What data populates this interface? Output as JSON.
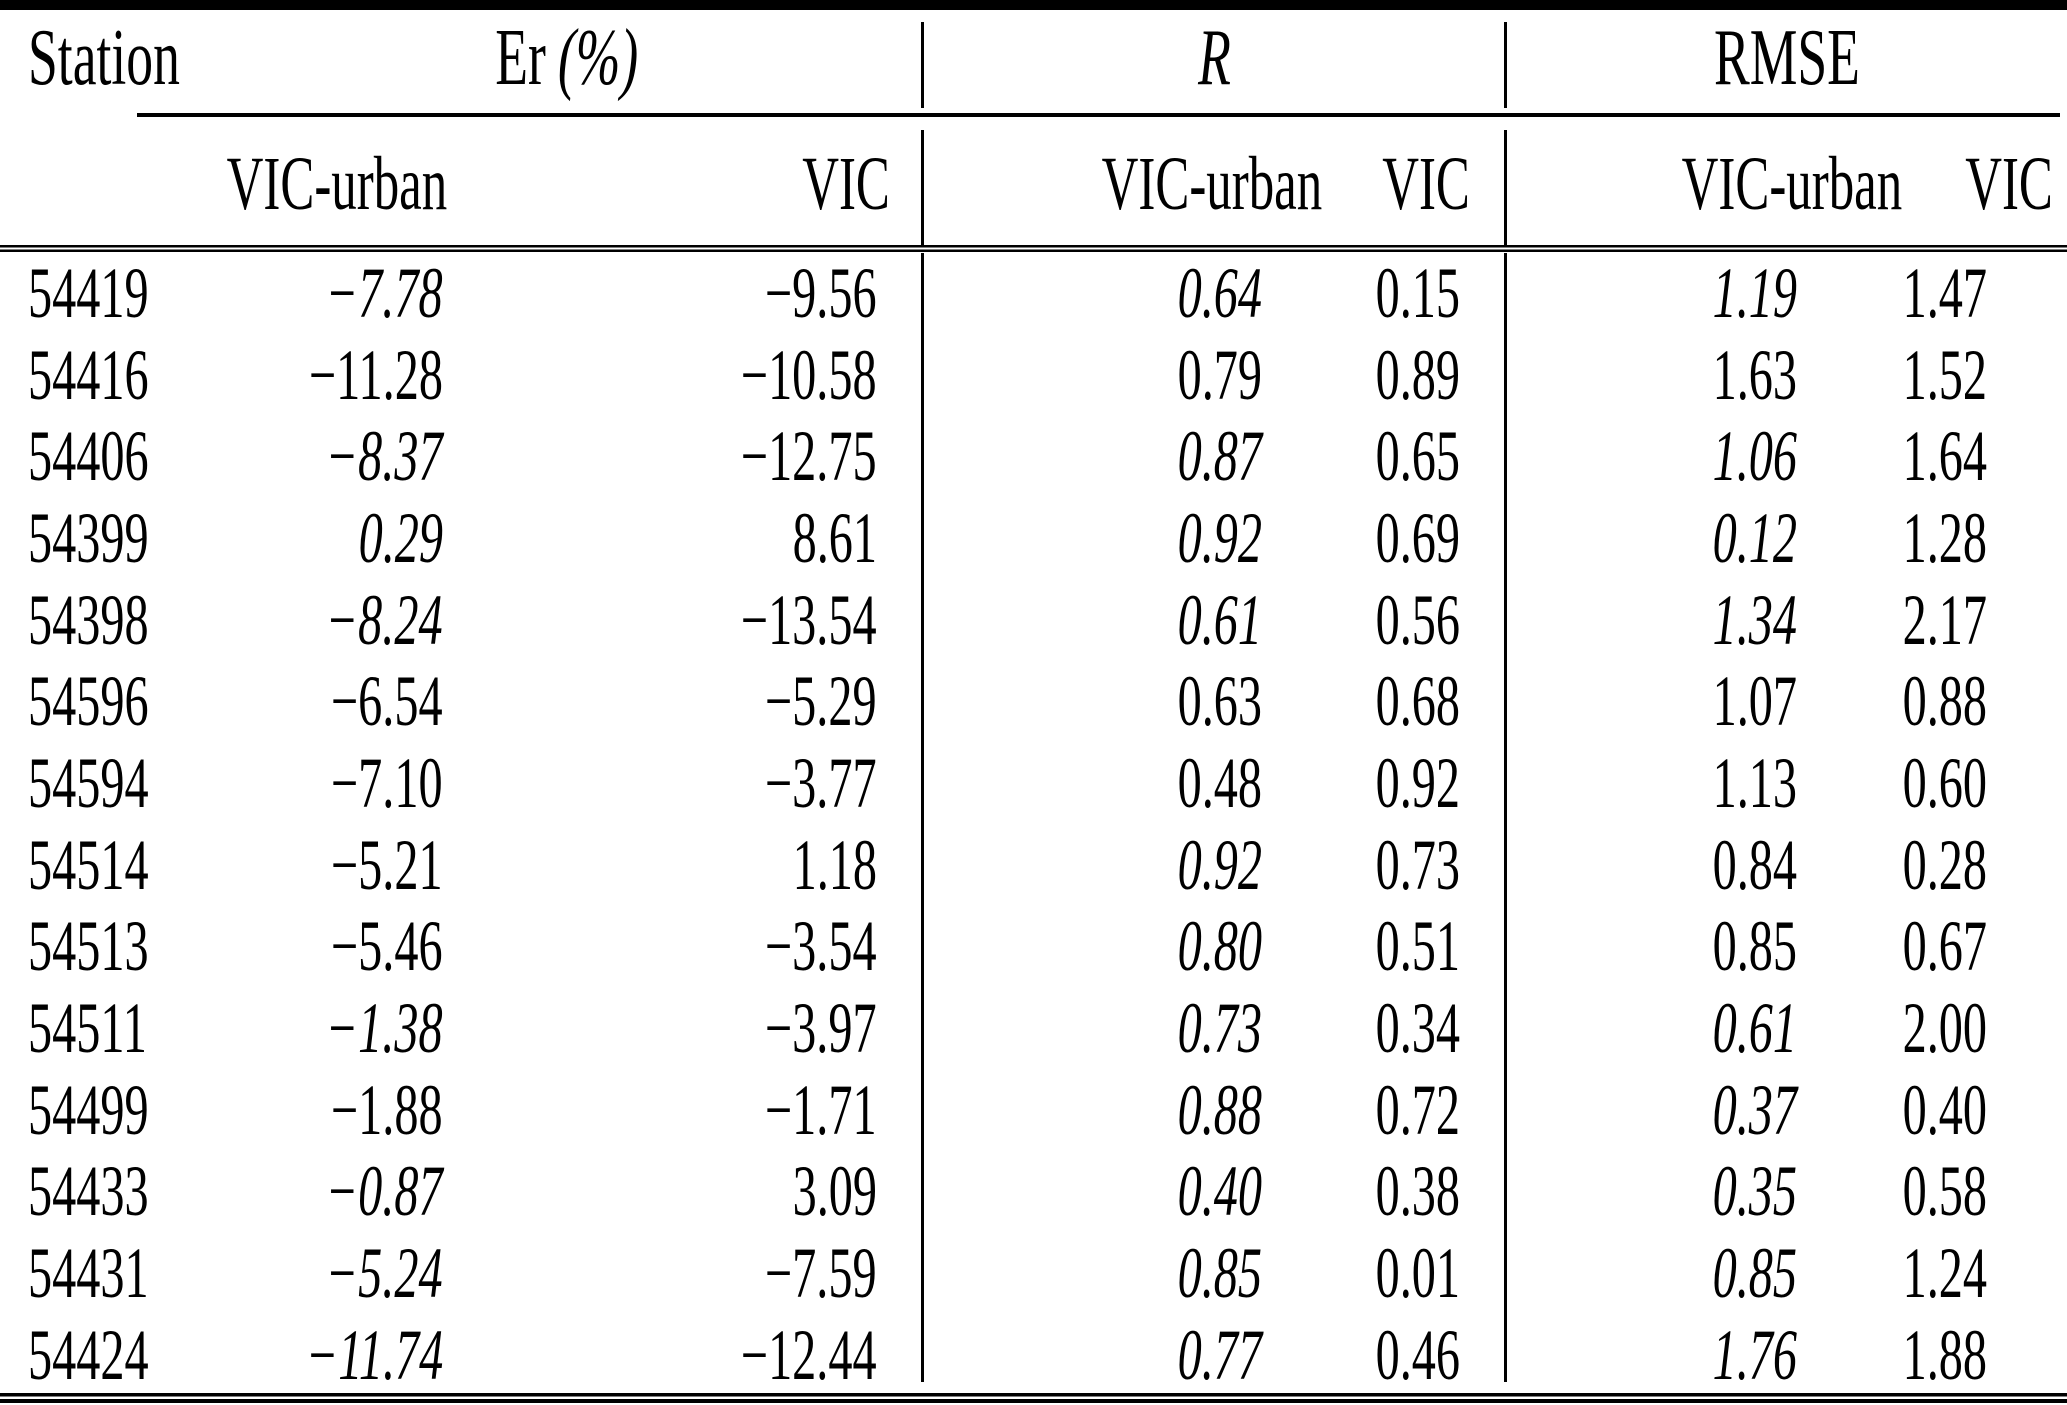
{
  "table": {
    "headers": {
      "station": "Station",
      "er_prefix": "Er",
      "er_suffix": "(%)",
      "r": "R",
      "rmse": "RMSE",
      "sub_vic_urban": "VIC-urban",
      "sub_vic": "VIC"
    },
    "columns": [
      "Station",
      "Er (%) VIC-urban",
      "Er (%) VIC",
      "R VIC-urban",
      "R VIC",
      "RMSE VIC-urban",
      "RMSE VIC"
    ],
    "rows": [
      {
        "station": "54419",
        "values": [
          {
            "v": "−7.78",
            "i": true
          },
          {
            "v": "−9.56",
            "i": false
          },
          {
            "v": "0.64",
            "i": true
          },
          {
            "v": "0.15",
            "i": false
          },
          {
            "v": "1.19",
            "i": true
          },
          {
            "v": "1.47",
            "i": false
          }
        ]
      },
      {
        "station": "54416",
        "values": [
          {
            "v": "−11.28",
            "i": false
          },
          {
            "v": "−10.58",
            "i": false
          },
          {
            "v": "0.79",
            "i": false
          },
          {
            "v": "0.89",
            "i": false
          },
          {
            "v": "1.63",
            "i": false
          },
          {
            "v": "1.52",
            "i": false
          }
        ]
      },
      {
        "station": "54406",
        "values": [
          {
            "v": "−8.37",
            "i": true
          },
          {
            "v": "−12.75",
            "i": false
          },
          {
            "v": "0.87",
            "i": true
          },
          {
            "v": "0.65",
            "i": false
          },
          {
            "v": "1.06",
            "i": true
          },
          {
            "v": "1.64",
            "i": false
          }
        ]
      },
      {
        "station": "54399",
        "values": [
          {
            "v": "0.29",
            "i": true
          },
          {
            "v": "8.61",
            "i": false
          },
          {
            "v": "0.92",
            "i": true
          },
          {
            "v": "0.69",
            "i": false
          },
          {
            "v": "0.12",
            "i": true
          },
          {
            "v": "1.28",
            "i": false
          }
        ]
      },
      {
        "station": "54398",
        "values": [
          {
            "v": "−8.24",
            "i": true
          },
          {
            "v": "−13.54",
            "i": false
          },
          {
            "v": "0.61",
            "i": true
          },
          {
            "v": "0.56",
            "i": false
          },
          {
            "v": "1.34",
            "i": true
          },
          {
            "v": "2.17",
            "i": false
          }
        ]
      },
      {
        "station": "54596",
        "values": [
          {
            "v": "−6.54",
            "i": false
          },
          {
            "v": "−5.29",
            "i": false
          },
          {
            "v": "0.63",
            "i": false
          },
          {
            "v": "0.68",
            "i": false
          },
          {
            "v": "1.07",
            "i": false
          },
          {
            "v": "0.88",
            "i": false
          }
        ]
      },
      {
        "station": "54594",
        "values": [
          {
            "v": "−7.10",
            "i": false
          },
          {
            "v": "−3.77",
            "i": false
          },
          {
            "v": "0.48",
            "i": false
          },
          {
            "v": "0.92",
            "i": false
          },
          {
            "v": "1.13",
            "i": false
          },
          {
            "v": "0.60",
            "i": false
          }
        ]
      },
      {
        "station": "54514",
        "values": [
          {
            "v": "−5.21",
            "i": false
          },
          {
            "v": "1.18",
            "i": false
          },
          {
            "v": "0.92",
            "i": true
          },
          {
            "v": "0.73",
            "i": false
          },
          {
            "v": "0.84",
            "i": false
          },
          {
            "v": "0.28",
            "i": false
          }
        ]
      },
      {
        "station": "54513",
        "values": [
          {
            "v": "−5.46",
            "i": false
          },
          {
            "v": "−3.54",
            "i": false
          },
          {
            "v": "0.80",
            "i": true
          },
          {
            "v": "0.51",
            "i": false
          },
          {
            "v": "0.85",
            "i": false
          },
          {
            "v": "0.67",
            "i": false
          }
        ]
      },
      {
        "station": "54511",
        "values": [
          {
            "v": "−1.38",
            "i": true
          },
          {
            "v": "−3.97",
            "i": false
          },
          {
            "v": "0.73",
            "i": true
          },
          {
            "v": "0.34",
            "i": false
          },
          {
            "v": "0.61",
            "i": true
          },
          {
            "v": "2.00",
            "i": false
          }
        ]
      },
      {
        "station": "54499",
        "values": [
          {
            "v": "−1.88",
            "i": false
          },
          {
            "v": "−1.71",
            "i": false
          },
          {
            "v": "0.88",
            "i": true
          },
          {
            "v": "0.72",
            "i": false
          },
          {
            "v": "0.37",
            "i": true
          },
          {
            "v": "0.40",
            "i": false
          }
        ]
      },
      {
        "station": "54433",
        "values": [
          {
            "v": "−0.87",
            "i": true
          },
          {
            "v": "3.09",
            "i": false
          },
          {
            "v": "0.40",
            "i": true
          },
          {
            "v": "0.38",
            "i": false
          },
          {
            "v": "0.35",
            "i": true
          },
          {
            "v": "0.58",
            "i": false
          }
        ]
      },
      {
        "station": "54431",
        "values": [
          {
            "v": "−5.24",
            "i": true
          },
          {
            "v": "−7.59",
            "i": false
          },
          {
            "v": "0.85",
            "i": true
          },
          {
            "v": "0.01",
            "i": false
          },
          {
            "v": "0.85",
            "i": true
          },
          {
            "v": "1.24",
            "i": false
          }
        ]
      },
      {
        "station": "54424",
        "values": [
          {
            "v": "−11.74",
            "i": true
          },
          {
            "v": "−12.44",
            "i": false
          },
          {
            "v": "0.77",
            "i": true
          },
          {
            "v": "0.46",
            "i": false
          },
          {
            "v": "1.76",
            "i": true
          },
          {
            "v": "1.88",
            "i": false
          }
        ]
      }
    ]
  }
}
